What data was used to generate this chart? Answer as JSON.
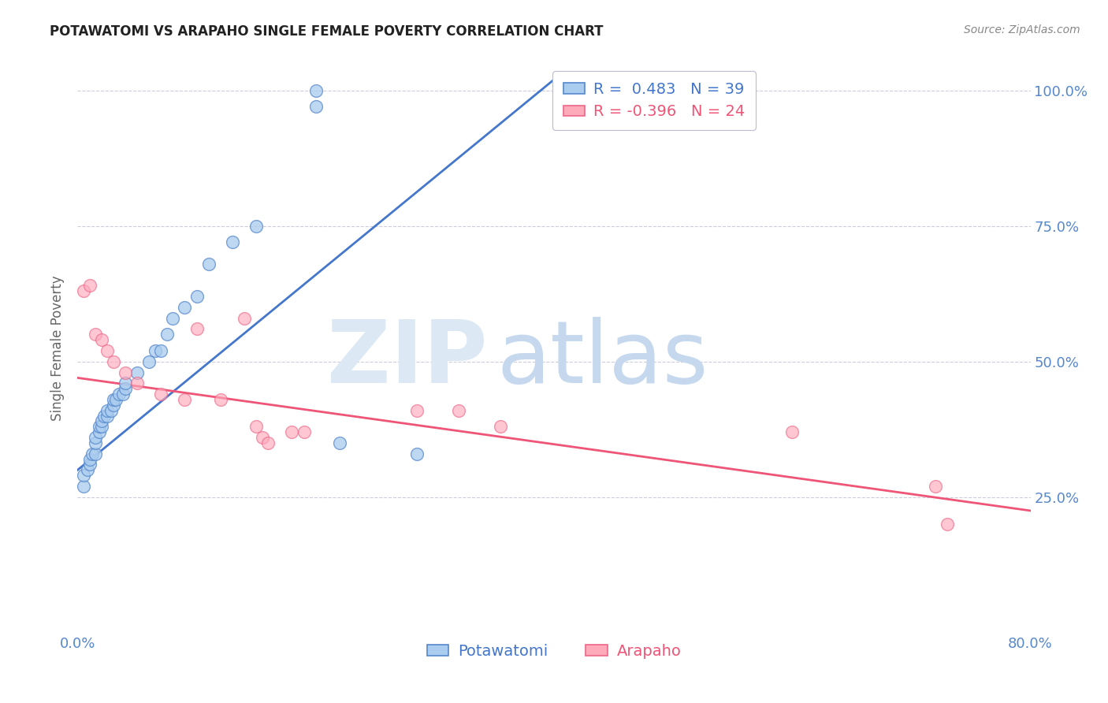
{
  "title": "POTAWATOMI VS ARAPAHO SINGLE FEMALE POVERTY CORRELATION CHART",
  "source": "Source: ZipAtlas.com",
  "ylabel": "Single Female Poverty",
  "legend_blue_r": "R =  0.483",
  "legend_blue_n": "N = 39",
  "legend_pink_r": "R = -0.396",
  "legend_pink_n": "N = 24",
  "xlim": [
    0.0,
    0.8
  ],
  "ylim": [
    0.0,
    1.05
  ],
  "blue_fill": "#AACCEE",
  "blue_edge": "#5588CC",
  "pink_fill": "#FFAABB",
  "pink_edge": "#EE6688",
  "blue_line": "#4477CC",
  "pink_line": "#EE5577",
  "grid_color": "#CCCCDD",
  "background": "#FFFFFF",
  "potawatomi_x": [
    0.005,
    0.005,
    0.008,
    0.01,
    0.01,
    0.012,
    0.015,
    0.015,
    0.015,
    0.018,
    0.018,
    0.02,
    0.02,
    0.022,
    0.025,
    0.025,
    0.028,
    0.03,
    0.03,
    0.032,
    0.035,
    0.038,
    0.04,
    0.04,
    0.05,
    0.06,
    0.065,
    0.07,
    0.075,
    0.08,
    0.09,
    0.1,
    0.11,
    0.13,
    0.15,
    0.2,
    0.2,
    0.22,
    0.285
  ],
  "potawatomi_y": [
    0.27,
    0.29,
    0.3,
    0.31,
    0.32,
    0.33,
    0.33,
    0.35,
    0.36,
    0.37,
    0.38,
    0.38,
    0.39,
    0.4,
    0.4,
    0.41,
    0.41,
    0.42,
    0.43,
    0.43,
    0.44,
    0.44,
    0.45,
    0.46,
    0.48,
    0.5,
    0.52,
    0.52,
    0.55,
    0.58,
    0.6,
    0.62,
    0.68,
    0.72,
    0.75,
    0.97,
    1.0,
    0.35,
    0.33
  ],
  "arapaho_x": [
    0.005,
    0.01,
    0.015,
    0.02,
    0.025,
    0.03,
    0.04,
    0.05,
    0.07,
    0.09,
    0.1,
    0.12,
    0.14,
    0.15,
    0.155,
    0.16,
    0.18,
    0.19,
    0.285,
    0.32,
    0.355,
    0.6,
    0.72,
    0.73
  ],
  "arapaho_y": [
    0.63,
    0.64,
    0.55,
    0.54,
    0.52,
    0.5,
    0.48,
    0.46,
    0.44,
    0.43,
    0.56,
    0.43,
    0.58,
    0.38,
    0.36,
    0.35,
    0.37,
    0.37,
    0.41,
    0.41,
    0.38,
    0.37,
    0.27,
    0.2
  ],
  "blue_trend_x": [
    0.0,
    0.4
  ],
  "blue_trend_y": [
    0.3,
    1.02
  ],
  "pink_trend_x": [
    0.0,
    0.8
  ],
  "pink_trend_y": [
    0.47,
    0.225
  ],
  "x_ticks": [
    0.0,
    0.1,
    0.2,
    0.3,
    0.4,
    0.5,
    0.6,
    0.7,
    0.8
  ],
  "x_labels": [
    "0.0%",
    "",
    "",
    "",
    "",
    "",
    "",
    "",
    "80.0%"
  ],
  "y_ticks_right": [
    0.25,
    0.5,
    0.75,
    1.0
  ],
  "y_labels_right": [
    "25.0%",
    "50.0%",
    "75.0%",
    "100.0%"
  ],
  "title_fontsize": 12,
  "source_fontsize": 10,
  "tick_fontsize": 13,
  "legend_fontsize": 14,
  "ylabel_fontsize": 12,
  "watermark_zip_color": "#DDE8F5",
  "watermark_atlas_color": "#C5D8EE"
}
